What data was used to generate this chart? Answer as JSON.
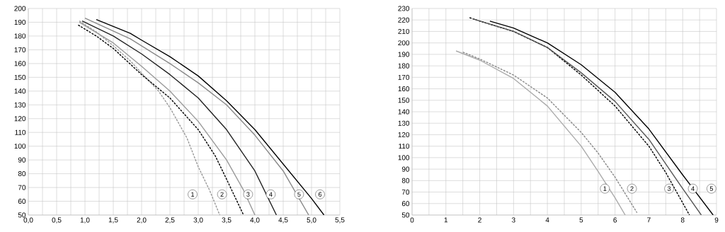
{
  "chart_data": [
    {
      "type": "line",
      "marker": "none",
      "grid": true,
      "xlim": [
        0,
        5.5
      ],
      "ylim": [
        50,
        200
      ],
      "xticks": [
        {
          "value": 0,
          "label": "0,0"
        },
        {
          "value": 0.25,
          "label": null
        },
        {
          "value": 0.5,
          "label": "0,5"
        },
        {
          "value": 0.75,
          "label": null
        },
        {
          "value": 1,
          "label": "1,0"
        },
        {
          "value": 1.25,
          "label": null
        },
        {
          "value": 1.5,
          "label": "1,5"
        },
        {
          "value": 1.75,
          "label": null
        },
        {
          "value": 2,
          "label": "2,0"
        },
        {
          "value": 2.25,
          "label": null
        },
        {
          "value": 2.5,
          "label": "2,5"
        },
        {
          "value": 2.75,
          "label": null
        },
        {
          "value": 3,
          "label": "3,0"
        },
        {
          "value": 3.25,
          "label": null
        },
        {
          "value": 3.5,
          "label": "3,5"
        },
        {
          "value": 3.75,
          "label": null
        },
        {
          "value": 4,
          "label": "4,0"
        },
        {
          "value": 4.25,
          "label": null
        },
        {
          "value": 4.5,
          "label": "4,5"
        },
        {
          "value": 4.75,
          "label": null
        },
        {
          "value": 5,
          "label": "5,0"
        },
        {
          "value": 5.25,
          "label": null
        },
        {
          "value": 5.5,
          "label": "5,5"
        }
      ],
      "yticks": [
        50,
        60,
        70,
        80,
        90,
        100,
        110,
        120,
        130,
        140,
        150,
        160,
        170,
        180,
        190,
        200
      ],
      "series": [
        {
          "color": "#999999",
          "line_style": "dashed",
          "x": [
            0.9,
            1.2,
            1.5,
            1.8,
            2.0,
            2.3,
            2.5,
            2.8,
            3.0,
            3.2,
            3.38
          ],
          "values": [
            191,
            183,
            173,
            162,
            153,
            140,
            128,
            106,
            85,
            68,
            50
          ]
        },
        {
          "color": "#000000",
          "line_style": "dashed",
          "x": [
            0.88,
            1.2,
            1.5,
            2.0,
            2.5,
            3.0,
            3.3,
            3.5,
            3.8
          ],
          "values": [
            188,
            180,
            171,
            152,
            135,
            112,
            93,
            76,
            50
          ]
        },
        {
          "color": "#999999",
          "line_style": "solid",
          "x": [
            0.9,
            1.5,
            2.0,
            2.5,
            3.0,
            3.5,
            3.8,
            4.0
          ],
          "values": [
            190,
            175,
            158,
            140,
            118,
            90,
            68,
            50
          ]
        },
        {
          "color": "#222222",
          "line_style": "solid",
          "x": [
            0.95,
            1.5,
            2.0,
            2.5,
            3.0,
            3.5,
            4.0,
            4.38
          ],
          "values": [
            191,
            180,
            167,
            152,
            135,
            112,
            82,
            50
          ]
        },
        {
          "color": "#888888",
          "line_style": "solid",
          "x": [
            1.0,
            1.8,
            2.5,
            3.0,
            3.5,
            4.0,
            4.5,
            4.95
          ],
          "values": [
            193,
            178,
            160,
            146,
            130,
            108,
            82,
            50
          ]
        },
        {
          "color": "#000000",
          "line_style": "solid",
          "x": [
            1.2,
            1.8,
            2.0,
            2.5,
            3.0,
            3.5,
            4.0,
            4.5,
            5.0,
            5.22
          ],
          "values": [
            192,
            182,
            177,
            165,
            151,
            133,
            112,
            87,
            62,
            50
          ]
        }
      ],
      "annotations": [
        {
          "text": "1",
          "x": 2.9,
          "y": 65
        },
        {
          "text": "2",
          "x": 3.42,
          "y": 65
        },
        {
          "text": "3",
          "x": 3.88,
          "y": 65
        },
        {
          "text": "4",
          "x": 4.28,
          "y": 65
        },
        {
          "text": "5",
          "x": 4.78,
          "y": 65
        },
        {
          "text": "6",
          "x": 5.15,
          "y": 65
        }
      ]
    },
    {
      "type": "line",
      "marker": "none",
      "grid": true,
      "xlim": [
        0,
        9
      ],
      "ylim": [
        50,
        230
      ],
      "xticks": [
        0,
        {
          "value": 0.5,
          "label": null
        },
        1,
        {
          "value": 1.5,
          "label": null
        },
        2,
        {
          "value": 2.5,
          "label": null
        },
        3,
        {
          "value": 3.5,
          "label": null
        },
        4,
        {
          "value": 4.5,
          "label": null
        },
        5,
        {
          "value": 5.5,
          "label": null
        },
        6,
        {
          "value": 6.5,
          "label": null
        },
        7,
        {
          "value": 7.5,
          "label": null
        },
        8,
        {
          "value": 8.5,
          "label": null
        },
        9
      ],
      "yticks": [
        50,
        60,
        70,
        80,
        90,
        100,
        110,
        120,
        130,
        140,
        150,
        160,
        170,
        180,
        190,
        200,
        210,
        220,
        230
      ],
      "series": [
        {
          "color": "#aaaaaa",
          "line_style": "solid",
          "x": [
            1.3,
            2,
            3,
            4,
            5,
            5.5,
            6,
            6.3
          ],
          "values": [
            193,
            185,
            169,
            145,
            110,
            88,
            65,
            50
          ]
        },
        {
          "color": "#888888",
          "line_style": "dashed",
          "x": [
            1.5,
            2,
            3,
            4,
            5,
            5.5,
            6,
            6.65
          ],
          "values": [
            192,
            186,
            172,
            152,
            122,
            104,
            83,
            52
          ]
        },
        {
          "color": "#000000",
          "line_style": "dashed",
          "x": [
            1.7,
            2,
            3,
            4,
            5,
            6,
            7,
            7.5,
            8.2
          ],
          "values": [
            222,
            219,
            210,
            196,
            172,
            145,
            110,
            87,
            50
          ]
        },
        {
          "color": "#555555",
          "line_style": "solid",
          "x": [
            1.8,
            3,
            4,
            5,
            6,
            7,
            8,
            8.55
          ],
          "values": [
            221,
            210,
            196,
            174,
            149,
            116,
            73,
            50
          ]
        },
        {
          "color": "#000000",
          "line_style": "solid",
          "x": [
            2.3,
            3,
            4,
            5,
            6,
            7,
            8,
            8.9
          ],
          "values": [
            219,
            213,
            200,
            181,
            157,
            125,
            85,
            50
          ]
        }
      ],
      "annotations": [
        {
          "text": "1",
          "x": 5.7,
          "y": 73
        },
        {
          "text": "2",
          "x": 6.5,
          "y": 73
        },
        {
          "text": "3",
          "x": 7.6,
          "y": 73
        },
        {
          "text": "4",
          "x": 8.3,
          "y": 73
        },
        {
          "text": "5",
          "x": 8.85,
          "y": 73
        }
      ]
    }
  ]
}
